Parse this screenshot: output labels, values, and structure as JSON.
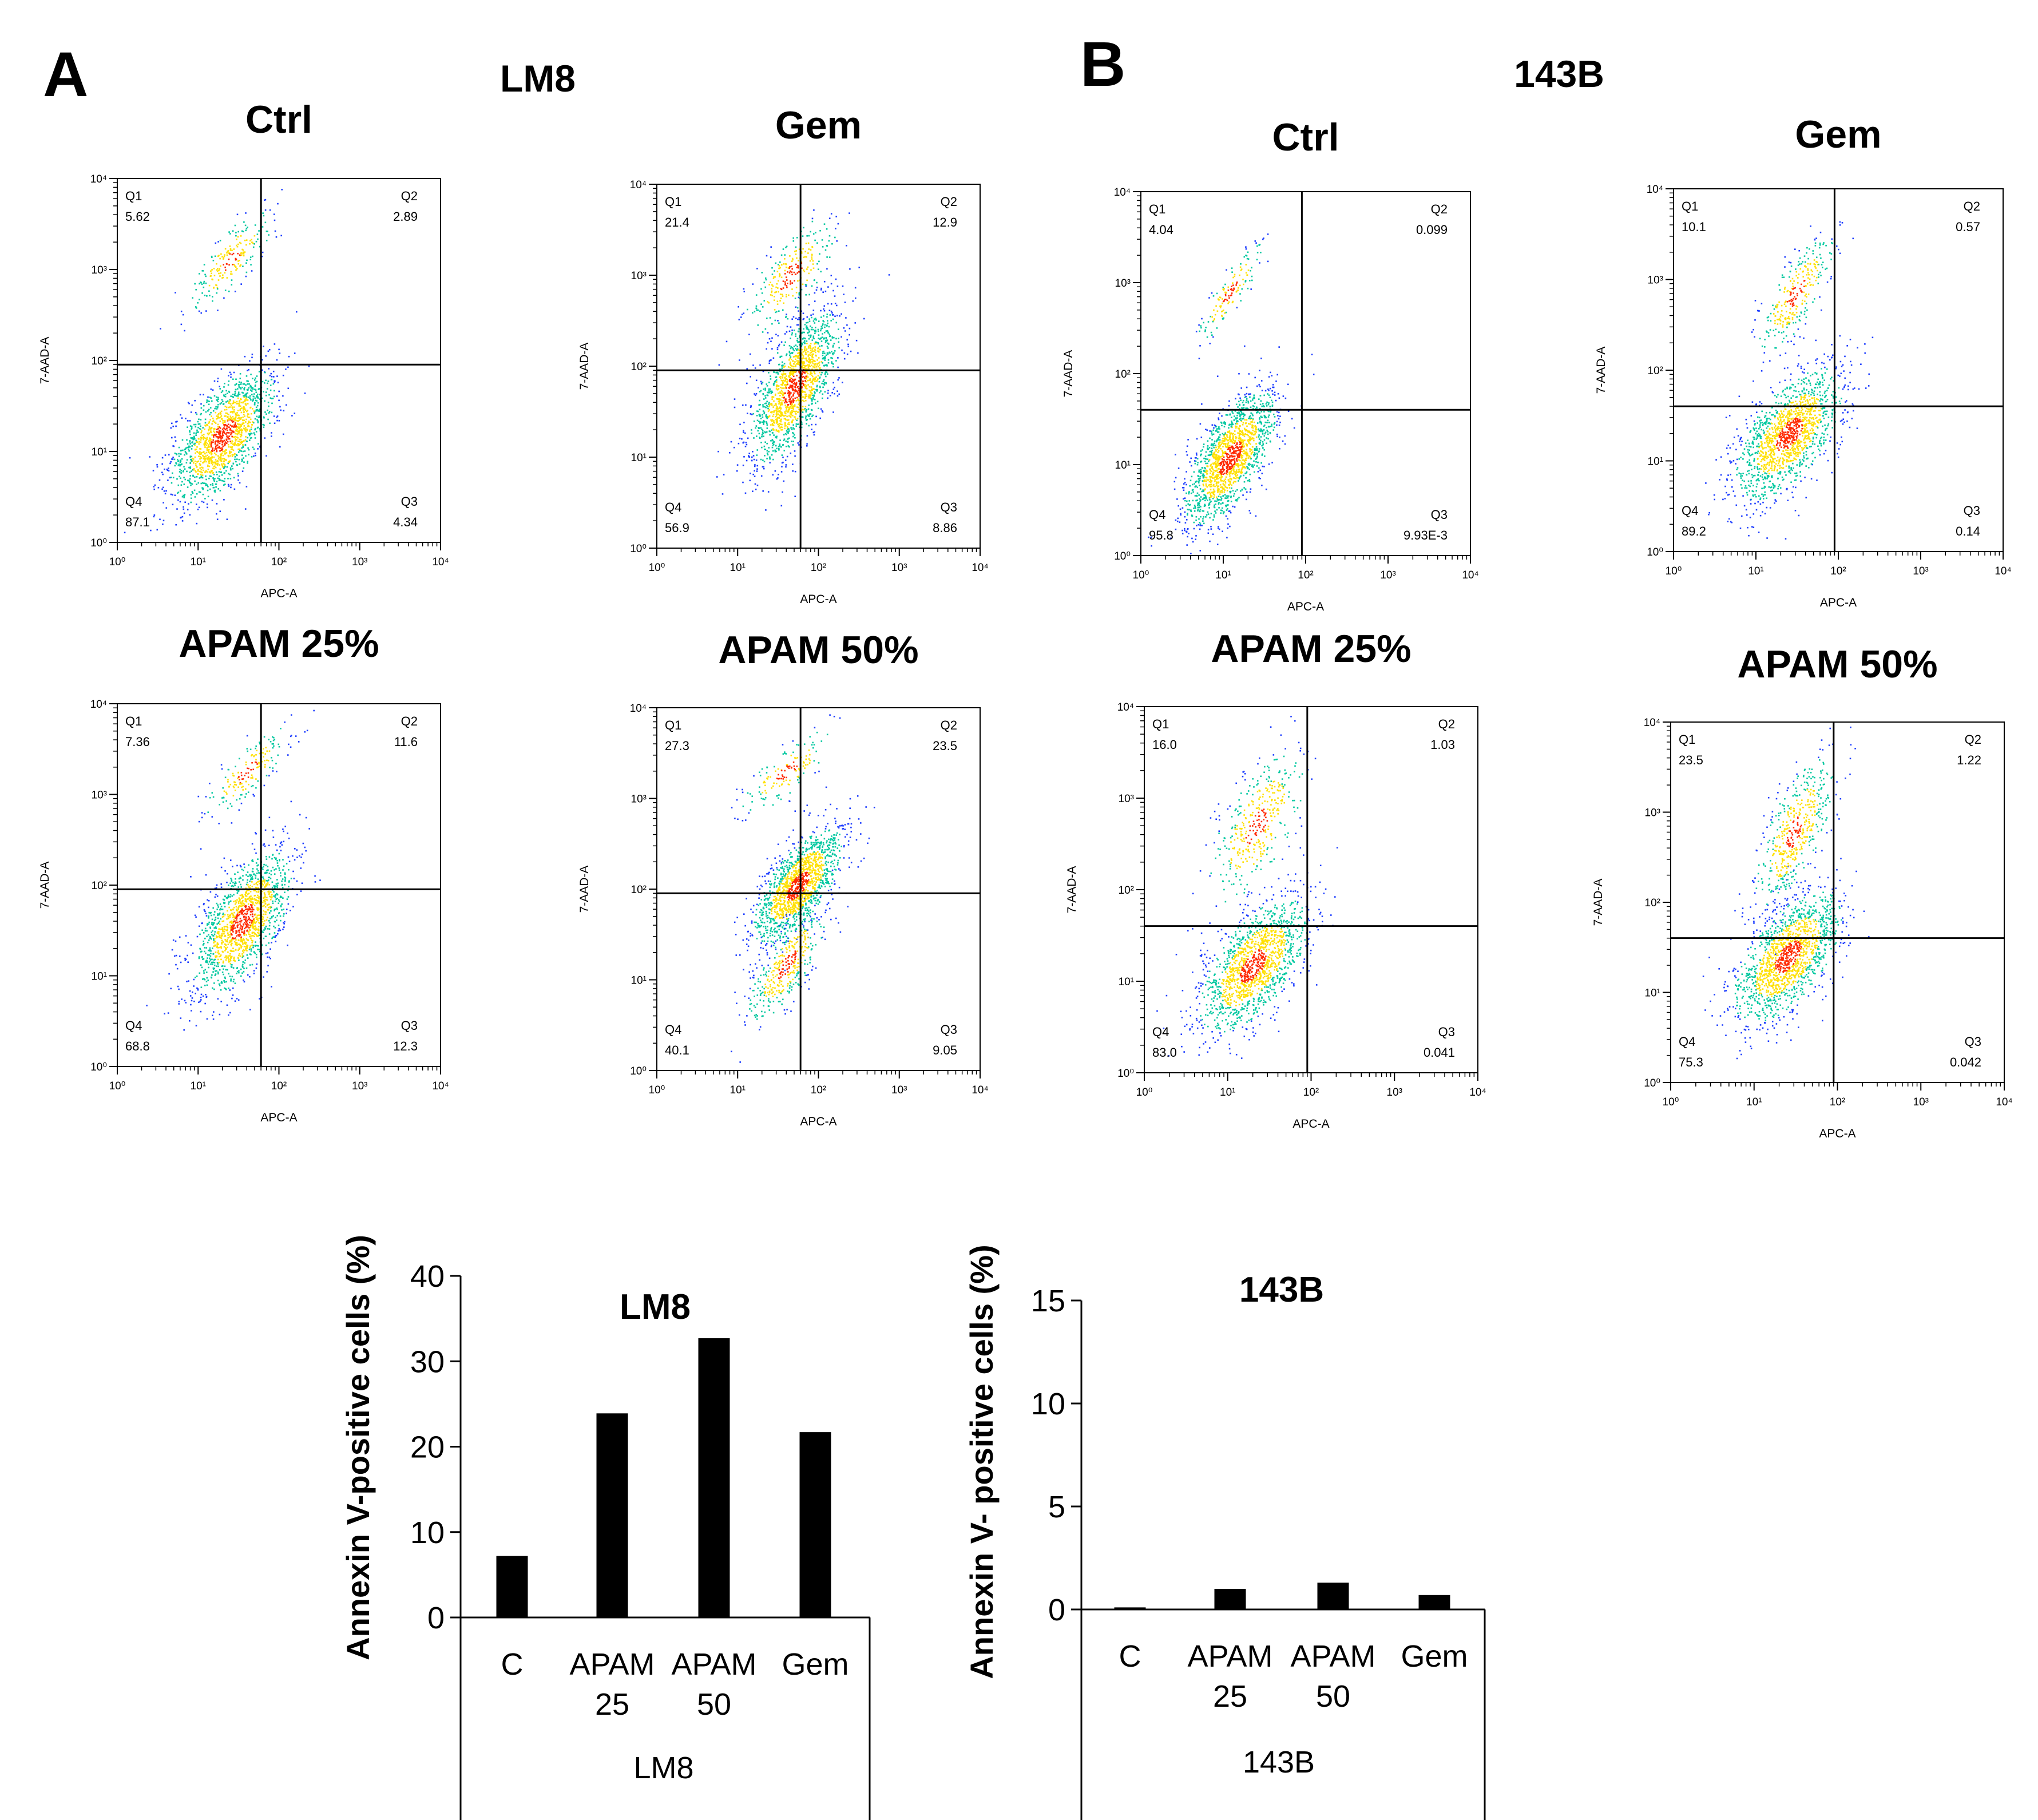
{
  "colors": {
    "axis": "#000000",
    "bar": "#000000",
    "dot_low": "#1f3fff",
    "dot_mid": "#00c8a0",
    "dot_high": "#ffe000",
    "dot_peak": "#ff2a00"
  },
  "panels": [
    {
      "letter": "A",
      "cell_line": "LM8"
    },
    {
      "letter": "B",
      "cell_line": "143B"
    }
  ],
  "chart_data": [
    {
      "type": "scatter",
      "panel": "A",
      "cell_line": "LM8",
      "title": "Ctrl",
      "xlabel": "APC-A",
      "ylabel": "7-AAD-A",
      "x_ticks": [
        "10⁰",
        "10¹",
        "10²",
        "10³",
        "10⁴"
      ],
      "y_ticks": [
        "10⁰",
        "10¹",
        "10²",
        "10³",
        "10⁴"
      ],
      "gate": {
        "x": 60,
        "y": 90
      },
      "quadrants": {
        "Q1": "5.62",
        "Q2": "2.89",
        "Q3": "4.34",
        "Q4": "87.1"
      },
      "clusters": [
        {
          "center": [
            20,
            15
          ],
          "spread": [
            0.3,
            0.35
          ],
          "n": 1500
        },
        {
          "center": [
            25,
            1300
          ],
          "spread": [
            0.22,
            0.25
          ],
          "n": 220
        }
      ]
    },
    {
      "type": "scatter",
      "panel": "A",
      "cell_line": "LM8",
      "title": "Gem",
      "xlabel": "APC-A",
      "ylabel": "7-AAD-A",
      "x_ticks": [
        "10⁰",
        "10¹",
        "10²",
        "10³",
        "10⁴"
      ],
      "y_ticks": [
        "10⁰",
        "10¹",
        "10²",
        "10³",
        "10⁴"
      ],
      "gate": {
        "x": 60,
        "y": 90
      },
      "quadrants": {
        "Q1": "21.4",
        "Q2": "12.9",
        "Q3": "8.86",
        "Q4": "56.9"
      },
      "clusters": [
        {
          "center": [
            50,
            60
          ],
          "spread": [
            0.25,
            0.4
          ],
          "n": 1600
        },
        {
          "center": [
            45,
            1000
          ],
          "spread": [
            0.25,
            0.3
          ],
          "n": 280
        }
      ]
    },
    {
      "type": "scatter",
      "panel": "A",
      "cell_line": "LM8",
      "title": "APAM 25%",
      "xlabel": "APC-A",
      "ylabel": "7-AAD-A",
      "x_ticks": [
        "10⁰",
        "10¹",
        "10²",
        "10³",
        "10⁴"
      ],
      "y_ticks": [
        "10⁰",
        "10¹",
        "10²",
        "10³",
        "10⁴"
      ],
      "gate": {
        "x": 60,
        "y": 90
      },
      "quadrants": {
        "Q1": "7.36",
        "Q2": "11.6",
        "Q3": "12.3",
        "Q4": "68.8"
      },
      "clusters": [
        {
          "center": [
            35,
            40
          ],
          "spread": [
            0.28,
            0.38
          ],
          "n": 1500
        },
        {
          "center": [
            40,
            1800
          ],
          "spread": [
            0.22,
            0.22
          ],
          "n": 180
        }
      ]
    },
    {
      "type": "scatter",
      "panel": "A",
      "cell_line": "LM8",
      "title": "APAM 50%",
      "xlabel": "APC-A",
      "ylabel": "7-AAD-A",
      "x_ticks": [
        "10⁰",
        "10¹",
        "10²",
        "10³",
        "10⁴"
      ],
      "y_ticks": [
        "10⁰",
        "10¹",
        "10²",
        "10³",
        "10⁴"
      ],
      "gate": {
        "x": 60,
        "y": 90
      },
      "quadrants": {
        "Q1": "27.3",
        "Q2": "23.5",
        "Q3": "9.05",
        "Q4": "40.1"
      },
      "clusters": [
        {
          "center": [
            55,
            110
          ],
          "spread": [
            0.25,
            0.3
          ],
          "n": 1500
        },
        {
          "center": [
            40,
            15
          ],
          "spread": [
            0.2,
            0.3
          ],
          "n": 400
        },
        {
          "center": [
            40,
            2000
          ],
          "spread": [
            0.25,
            0.2
          ],
          "n": 150
        }
      ]
    },
    {
      "type": "scatter",
      "panel": "B",
      "cell_line": "143B",
      "title": "Ctrl",
      "xlabel": "APC-A",
      "ylabel": "7-AAD-A",
      "x_ticks": [
        "10⁰",
        "10¹",
        "10²",
        "10³",
        "10⁴"
      ],
      "y_ticks": [
        "10⁰",
        "10¹",
        "10²",
        "10³",
        "10⁴"
      ],
      "gate": {
        "x": 90,
        "y": 40
      },
      "quadrants": {
        "Q1": "4.04",
        "Q2": "0.099",
        "Q3": "9.93E-3",
        "Q4": "95.8"
      },
      "clusters": [
        {
          "center": [
            12,
            12
          ],
          "spread": [
            0.25,
            0.35
          ],
          "n": 1600
        },
        {
          "center": [
            12,
            800
          ],
          "spread": [
            0.15,
            0.25
          ],
          "n": 150
        }
      ]
    },
    {
      "type": "scatter",
      "panel": "B",
      "cell_line": "143B",
      "title": "Gem",
      "xlabel": "APC-A",
      "ylabel": "7-AAD-A",
      "x_ticks": [
        "10⁰",
        "10¹",
        "10²",
        "10³",
        "10⁴"
      ],
      "y_ticks": [
        "10⁰",
        "10¹",
        "10²",
        "10³",
        "10⁴"
      ],
      "gate": {
        "x": 90,
        "y": 40
      },
      "quadrants": {
        "Q1": "10.1",
        "Q2": "0.57",
        "Q3": "0.14",
        "Q4": "89.2"
      },
      "clusters": [
        {
          "center": [
            25,
            20
          ],
          "spread": [
            0.3,
            0.35
          ],
          "n": 1500
        },
        {
          "center": [
            30,
            700
          ],
          "spread": [
            0.2,
            0.3
          ],
          "n": 300
        }
      ]
    },
    {
      "type": "scatter",
      "panel": "B",
      "cell_line": "143B",
      "title": "APAM 25%",
      "xlabel": "APC-A",
      "ylabel": "7-AAD-A",
      "x_ticks": [
        "10⁰",
        "10¹",
        "10²",
        "10³",
        "10⁴"
      ],
      "y_ticks": [
        "10⁰",
        "10¹",
        "10²",
        "10³",
        "10⁴"
      ],
      "gate": {
        "x": 90,
        "y": 40
      },
      "quadrants": {
        "Q1": "16.0",
        "Q2": "1.03",
        "Q3": "0.041",
        "Q4": "83.0"
      },
      "clusters": [
        {
          "center": [
            20,
            15
          ],
          "spread": [
            0.3,
            0.35
          ],
          "n": 1500
        },
        {
          "center": [
            22,
            500
          ],
          "spread": [
            0.25,
            0.4
          ],
          "n": 400
        }
      ]
    },
    {
      "type": "scatter",
      "panel": "B",
      "cell_line": "143B",
      "title": "APAM 50%",
      "xlabel": "APC-A",
      "ylabel": "7-AAD-A",
      "x_ticks": [
        "10⁰",
        "10¹",
        "10²",
        "10³",
        "10⁴"
      ],
      "y_ticks": [
        "10⁰",
        "10¹",
        "10²",
        "10³",
        "10⁴"
      ],
      "gate": {
        "x": 90,
        "y": 40
      },
      "quadrants": {
        "Q1": "23.5",
        "Q2": "1.22",
        "Q3": "0.042",
        "Q4": "75.3"
      },
      "clusters": [
        {
          "center": [
            25,
            25
          ],
          "spread": [
            0.3,
            0.35
          ],
          "n": 1500
        },
        {
          "center": [
            30,
            600
          ],
          "spread": [
            0.2,
            0.4
          ],
          "n": 500
        }
      ]
    },
    {
      "type": "bar",
      "panel": "A",
      "title": "LM8",
      "ylabel": "Annexin V-positive  cells (%)",
      "xlabel": "LM8",
      "categories": [
        [
          "C"
        ],
        [
          "APAM",
          "25"
        ],
        [
          "APAM",
          "50"
        ],
        [
          "Gem"
        ]
      ],
      "values": [
        7.2,
        23.9,
        32.7,
        21.7
      ],
      "ylim": [
        0,
        40
      ],
      "yticks": [
        "0",
        "10",
        "20",
        "30",
        "40"
      ]
    },
    {
      "type": "bar",
      "panel": "B",
      "title": "143B",
      "ylabel": "Annexin V- positive  cells (%)",
      "xlabel": "143B",
      "categories": [
        [
          "C"
        ],
        [
          "APAM",
          "25"
        ],
        [
          "APAM",
          "50"
        ],
        [
          "Gem"
        ]
      ],
      "values": [
        0.1,
        1.0,
        1.3,
        0.7
      ],
      "ylim": [
        0,
        15
      ],
      "yticks": [
        "0",
        "5",
        "10",
        "15"
      ]
    }
  ]
}
